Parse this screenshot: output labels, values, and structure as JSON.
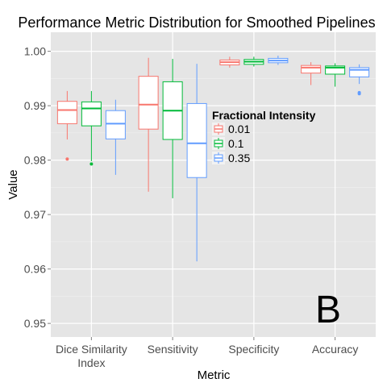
{
  "chart_data": {
    "type": "boxplot",
    "title": "Performance Metric Distribution for Smoothed Pipelines",
    "xlabel": "Metric",
    "ylabel": "Value",
    "ylim": [
      0.9475,
      1.0035
    ],
    "yticks": [
      0.95,
      0.96,
      0.97,
      0.98,
      0.99,
      1.0
    ],
    "ytick_labels": [
      "0.95",
      "0.96",
      "0.97",
      "0.98",
      "0.99",
      "1.00"
    ],
    "categories": [
      {
        "lines": [
          "Dice Similarity",
          "Index"
        ]
      },
      {
        "lines": [
          "Sensitivity"
        ]
      },
      {
        "lines": [
          "Specificity"
        ]
      },
      {
        "lines": [
          "Accuracy"
        ]
      }
    ],
    "legend": {
      "title": "Fractional Intensity",
      "position": "right-inside"
    },
    "grid": true,
    "panel_label": "B",
    "series": [
      {
        "name": "0.01",
        "color": "#F8766D",
        "boxes": [
          {
            "whisker_low": 0.9838,
            "q1": 0.9867,
            "median": 0.9892,
            "q3": 0.9908,
            "whisker_high": 0.9927,
            "outliers": [
              0.9802
            ]
          },
          {
            "whisker_low": 0.9742,
            "q1": 0.9857,
            "median": 0.9902,
            "q3": 0.9954,
            "whisker_high": 0.9988,
            "outliers": []
          },
          {
            "whisker_low": 0.997,
            "q1": 0.9975,
            "median": 0.998,
            "q3": 0.9984,
            "whisker_high": 0.999,
            "outliers": []
          },
          {
            "whisker_low": 0.9938,
            "q1": 0.996,
            "median": 0.997,
            "q3": 0.9974,
            "whisker_high": 0.998,
            "outliers": []
          }
        ]
      },
      {
        "name": "0.1",
        "color": "#00BA38",
        "boxes": [
          {
            "whisker_low": 0.9798,
            "q1": 0.9863,
            "median": 0.9895,
            "q3": 0.9907,
            "whisker_high": 0.9927,
            "outliers": [
              0.9793
            ]
          },
          {
            "whisker_low": 0.973,
            "q1": 0.9838,
            "median": 0.9891,
            "q3": 0.9944,
            "whisker_high": 0.9986,
            "outliers": []
          },
          {
            "whisker_low": 0.9972,
            "q1": 0.9976,
            "median": 0.9981,
            "q3": 0.9985,
            "whisker_high": 0.999,
            "outliers": []
          },
          {
            "whisker_low": 0.9935,
            "q1": 0.9958,
            "median": 0.997,
            "q3": 0.9973,
            "whisker_high": 0.9978,
            "outliers": []
          }
        ]
      },
      {
        "name": "0.35",
        "color": "#619CFF",
        "boxes": [
          {
            "whisker_low": 0.9773,
            "q1": 0.9839,
            "median": 0.9867,
            "q3": 0.9891,
            "whisker_high": 0.9911,
            "outliers": []
          },
          {
            "whisker_low": 0.9614,
            "q1": 0.9768,
            "median": 0.9831,
            "q3": 0.9904,
            "whisker_high": 0.9977,
            "outliers": []
          },
          {
            "whisker_low": 0.9975,
            "q1": 0.9979,
            "median": 0.9983,
            "q3": 0.9987,
            "whisker_high": 0.9992,
            "outliers": []
          },
          {
            "whisker_low": 0.994,
            "q1": 0.9953,
            "median": 0.9966,
            "q3": 0.997,
            "whisker_high": 0.9976,
            "outliers": [
              0.9924,
              0.9922
            ]
          }
        ]
      }
    ]
  }
}
